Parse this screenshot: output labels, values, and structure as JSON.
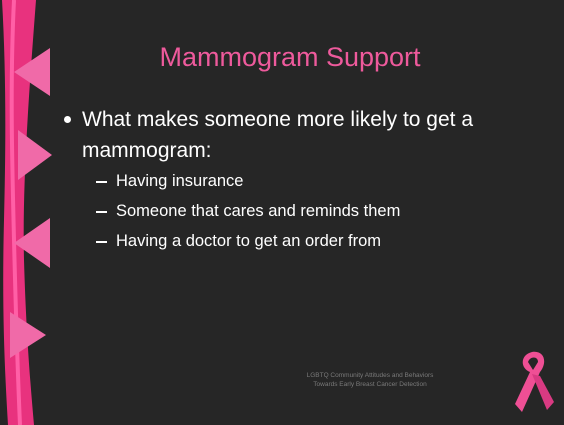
{
  "slide": {
    "title": "Mammogram Support",
    "bullets": [
      {
        "text": "What makes someone more likely to get a mammogram:",
        "subbullets": [
          "Having insurance",
          "Someone that cares and reminds them",
          "Having a doctor to get an order from"
        ]
      }
    ],
    "footer": [
      "LGBTQ Community Attitudes and Behaviors",
      "Towards Early Breast Cancer Detection"
    ]
  }
}
